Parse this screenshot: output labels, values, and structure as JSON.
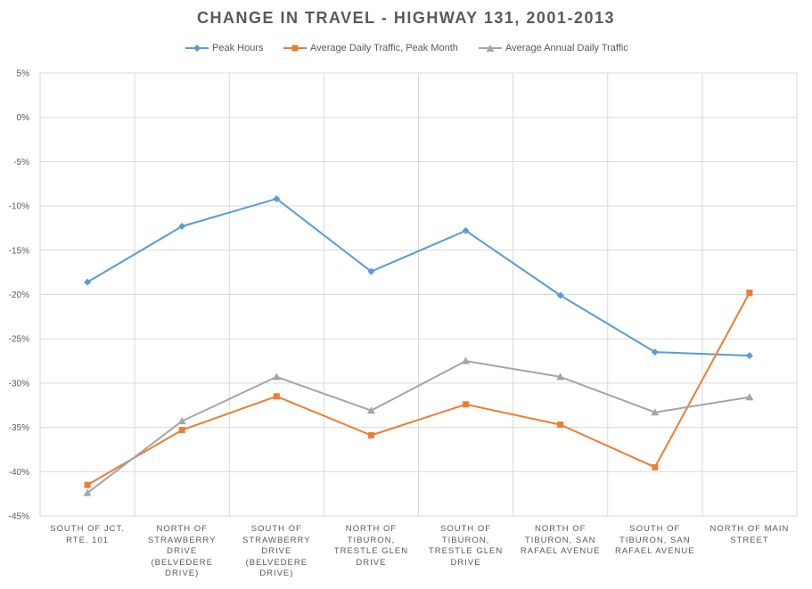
{
  "chart_data": {
    "type": "line",
    "title": "CHANGE IN TRAVEL - HIGHWAY 131, 2001-2013",
    "xlabel": "",
    "ylabel": "",
    "ylim": [
      -45,
      5
    ],
    "yticks": [
      5,
      0,
      -5,
      -10,
      -15,
      -20,
      -25,
      -30,
      -35,
      -40,
      -45
    ],
    "ytick_labels": [
      "5%",
      "0%",
      "-5%",
      "-10%",
      "-15%",
      "-20%",
      "-25%",
      "-30%",
      "-35%",
      "-40%",
      "-45%"
    ],
    "categories": [
      "SOUTH OF JCT. RTE. 101",
      "NORTH OF STRAWBERRY DRIVE (BELVEDERE DRIVE)",
      "SOUTH OF STRAWBERRY DRIVE (BELVEDERE DRIVE)",
      "NORTH OF TIBURON, TRESTLE GLEN DRIVE",
      "SOUTH OF TIBURON, TRESTLE GLEN DRIVE",
      "NORTH OF TIBURON, SAN RAFAEL AVENUE",
      "SOUTH OF TIBURON, SAN RAFAEL AVENUE",
      "NORTH OF MAIN STREET"
    ],
    "category_lines": [
      [
        "SOUTH OF JCT.",
        "RTE. 101"
      ],
      [
        "NORTH OF",
        "STRAWBERRY",
        "DRIVE",
        "(BELVEDERE",
        "DRIVE)"
      ],
      [
        "SOUTH OF",
        "STRAWBERRY",
        "DRIVE",
        "(BELVEDERE",
        "DRIVE)"
      ],
      [
        "NORTH OF",
        "TIBURON,",
        "TRESTLE GLEN",
        "DRIVE"
      ],
      [
        "SOUTH OF",
        "TIBURON,",
        "TRESTLE GLEN",
        "DRIVE"
      ],
      [
        "NORTH OF",
        "TIBURON, SAN",
        "RAFAEL AVENUE"
      ],
      [
        "SOUTH OF",
        "TIBURON, SAN",
        "RAFAEL AVENUE"
      ],
      [
        "NORTH OF MAIN",
        "STREET"
      ]
    ],
    "series": [
      {
        "name": "Peak Hours",
        "color": "#5B9BD5",
        "marker": "diamond",
        "values": [
          -18.6,
          -12.3,
          -9.2,
          -17.4,
          -12.8,
          -20.1,
          -26.5,
          -26.9
        ]
      },
      {
        "name": "Average Daily Traffic, Peak Month",
        "color": "#ED7D31",
        "marker": "square",
        "values": [
          -41.5,
          -35.3,
          -31.5,
          -35.9,
          -32.4,
          -34.7,
          -39.5,
          -19.8
        ]
      },
      {
        "name": "Average Annual Daily Traffic",
        "color": "#A5A5A5",
        "marker": "triangle",
        "values": [
          -42.4,
          -34.3,
          -29.3,
          -33.1,
          -27.5,
          -29.3,
          -33.3,
          -31.6
        ]
      }
    ],
    "legend_position": "top",
    "grid": true
  }
}
